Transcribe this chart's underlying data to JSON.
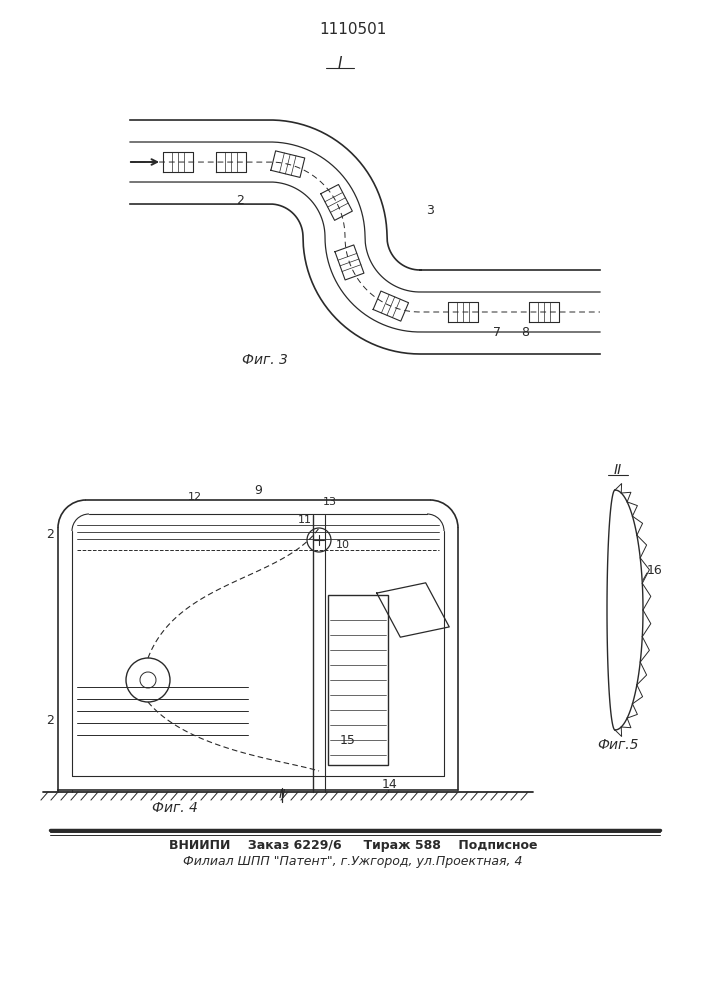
{
  "title": "1110501",
  "bg_color": "#ffffff",
  "line_color": "#2a2a2a",
  "fig1_label": "I",
  "fig3_caption": "Фиг. 3",
  "fig4_caption": "Фиг. 4",
  "fig5_caption": "Фиг.5",
  "label_I": "I",
  "label_II_top": "II",
  "footer_line1": "ВНИИПИ    Заказ 6229/6     Тираж 588    Подписное",
  "footer_line2": "Филиал ШПП \"Патент\", г.Ужгород, ул.Проектная, 4"
}
